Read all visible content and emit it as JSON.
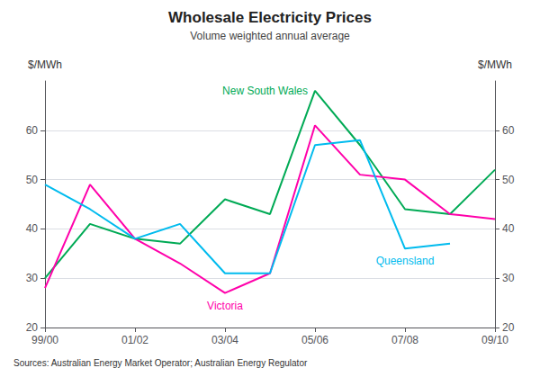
{
  "chart_data": {
    "type": "line",
    "title": "Wholesale Electricity Prices",
    "subtitle": "Volume weighted annual average",
    "ylabel": "$/MWh",
    "y2label": "$/MWh",
    "source": "Sources: Australian Energy Market Operator; Australian Energy Regulator",
    "categories": [
      "99/00",
      null,
      "01/02",
      null,
      "03/04",
      null,
      "05/06",
      null,
      "07/08",
      null,
      "09/10"
    ],
    "series": [
      {
        "name": "New South Wales",
        "color": "#00aa55",
        "values": [
          30,
          41,
          38,
          37,
          46,
          43,
          68,
          57,
          44,
          43,
          52
        ]
      },
      {
        "name": "Victoria",
        "color": "#ff00aa",
        "values": [
          28,
          49,
          38,
          33,
          27,
          31,
          61,
          51,
          50,
          43,
          42
        ]
      },
      {
        "name": "Queensland",
        "color": "#00bbee",
        "values": [
          49,
          44,
          38,
          41,
          31,
          31,
          57,
          58,
          36,
          37,
          null
        ]
      }
    ],
    "ylim": [
      20,
      70
    ],
    "yticks": [
      20,
      30,
      40,
      50,
      60
    ],
    "y2lim": [
      20,
      70
    ],
    "y2ticks": [
      20,
      30,
      40,
      50,
      60
    ],
    "grid": true
  }
}
